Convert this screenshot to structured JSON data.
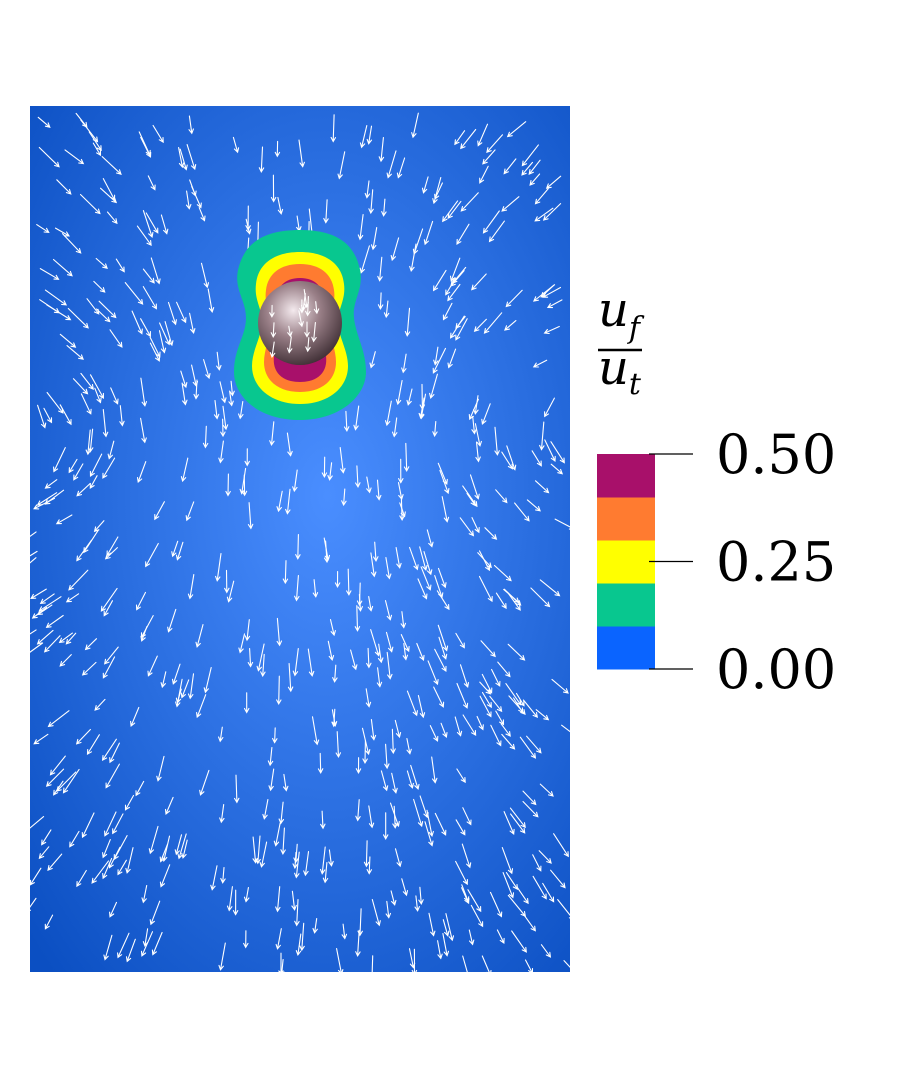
{
  "colorbar": {
    "title": {
      "numerator": "u",
      "numerator_sub": "f",
      "denominator": "u",
      "denominator_sub": "t"
    },
    "bands": [
      {
        "from": 0.0,
        "to": 0.1,
        "color": "#0a64ff"
      },
      {
        "from": 0.1,
        "to": 0.2,
        "color": "#08c78f"
      },
      {
        "from": 0.2,
        "to": 0.3,
        "color": "#ffff00"
      },
      {
        "from": 0.3,
        "to": 0.4,
        "color": "#ff7b30"
      },
      {
        "from": 0.4,
        "to": 0.5,
        "color": "#a8106a"
      }
    ],
    "range": [
      0.0,
      0.5
    ],
    "ticks": [
      {
        "value": 0.5,
        "label": "0.50"
      },
      {
        "value": 0.25,
        "label": "0.25"
      },
      {
        "value": 0.0,
        "label": "0.00"
      }
    ]
  },
  "field": {
    "background_center": "#4a8eff",
    "background_edge": "#0b4fc2",
    "sphere_color": "#9a8088",
    "arrow_color": "#ffffff"
  }
}
